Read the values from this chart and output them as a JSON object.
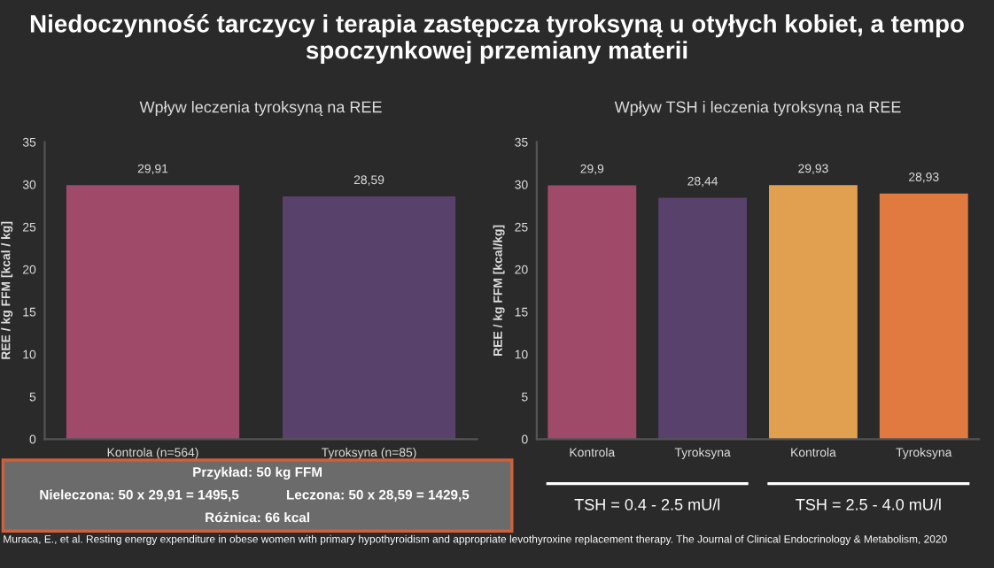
{
  "chart_data": [
    {
      "type": "bar",
      "title": "Wpływ leczenia tyroksyną na REE",
      "ylabel": "REE / kg FFM [kcal / kg]",
      "categories": [
        "Kontrola (n=564)",
        "Tyroksyna (n=85)"
      ],
      "values": [
        29.91,
        28.59
      ],
      "colors": [
        "#9e4a68",
        "#58416b"
      ],
      "value_labels": [
        "29,91",
        "28,59"
      ],
      "ylim": [
        0,
        35
      ],
      "yticks": [
        0,
        5,
        10,
        15,
        20,
        25,
        30,
        35
      ],
      "grid": false,
      "legend": false,
      "annotations": [
        "Niedoczynność tarczycy i terapia zastępcza tyroksyną u otyłych kobiet, a tempo spoczynkowej przemiany materii",
        "Przykład: 50 kg FFM",
        "Nieleczona: 50 x 29,91 = 1495,5",
        "Leczona: 50 x 28,59 = 1429,5",
        "Różnica: 66 kcal",
        "Muraca, E., et al. Resting energy expenditure in obese women with primary hypothyroidism and appropriate levothyroxine replacement therapy. The Journal of Clinical Endocrinology & Metabolism, 2020"
      ]
    },
    {
      "type": "bar",
      "title": "Wpływ TSH i leczenia tyroksyną na REE",
      "ylabel": "REE / kg FFM [kcal/kg]",
      "categories": [
        "Kontrola",
        "Tyroksyna",
        "Kontrola",
        "Tyroksyna"
      ],
      "values": [
        29.9,
        28.44,
        29.93,
        28.93
      ],
      "colors": [
        "#9e4a68",
        "#58416b",
        "#e0a050",
        "#e07a40"
      ],
      "value_labels": [
        "29,9",
        "28,44",
        "29,93",
        "28,93"
      ],
      "ylim": [
        0,
        35
      ],
      "yticks": [
        0,
        5,
        10,
        15,
        20,
        25,
        30,
        35
      ],
      "grid": false,
      "legend": false,
      "annotations": [
        "TSH = 0.4 - 2.5 mU/l",
        "TSH = 2.5 - 4.0 mU/l"
      ]
    }
  ]
}
